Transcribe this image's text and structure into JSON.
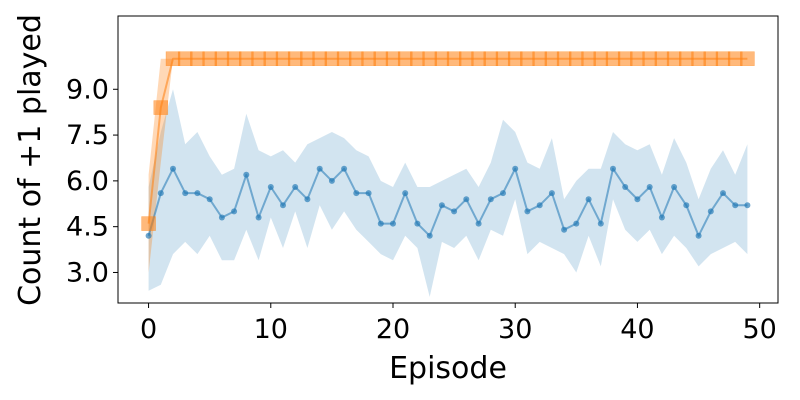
{
  "chart_data": {
    "type": "line",
    "title": "",
    "xlabel": "Episode",
    "ylabel": "Count of +1 played",
    "xlim": [
      -2.5,
      51.5
    ],
    "ylim": [
      2.0,
      11.4
    ],
    "xticks": [
      0,
      10,
      20,
      30,
      40,
      50
    ],
    "xtick_labels": [
      "0",
      "10",
      "20",
      "30",
      "40",
      "50"
    ],
    "yticks": [
      3.0,
      4.5,
      6.0,
      7.5,
      9.0
    ],
    "ytick_labels": [
      "3.0",
      "4.5",
      "6.0",
      "7.5",
      "9.0"
    ],
    "grid": false,
    "legend": "none",
    "x": [
      0,
      1,
      2,
      3,
      4,
      5,
      6,
      7,
      8,
      9,
      10,
      11,
      12,
      13,
      14,
      15,
      16,
      17,
      18,
      19,
      20,
      21,
      22,
      23,
      24,
      25,
      26,
      27,
      28,
      29,
      30,
      31,
      32,
      33,
      34,
      35,
      36,
      37,
      38,
      39,
      40,
      41,
      42,
      43,
      44,
      45,
      46,
      47,
      48,
      49
    ],
    "series": [
      {
        "color": "#1f77b4",
        "marker": "circle",
        "values": [
          4.2,
          5.6,
          6.4,
          5.6,
          5.6,
          5.4,
          4.8,
          5.0,
          6.2,
          4.8,
          5.8,
          5.2,
          5.8,
          5.4,
          6.4,
          6.0,
          6.4,
          5.6,
          5.6,
          4.6,
          4.6,
          5.6,
          4.6,
          4.2,
          5.2,
          5.0,
          5.4,
          4.6,
          5.4,
          5.6,
          6.4,
          5.0,
          5.2,
          5.6,
          4.4,
          4.6,
          5.4,
          4.6,
          6.4,
          5.8,
          5.4,
          5.8,
          4.8,
          5.8,
          5.2,
          4.2,
          5.0,
          5.6,
          5.2,
          5.2
        ],
        "lower": [
          2.4,
          2.6,
          3.6,
          4.0,
          3.6,
          4.2,
          3.4,
          3.4,
          4.4,
          3.4,
          4.8,
          3.8,
          5.0,
          3.8,
          5.2,
          4.4,
          5.0,
          4.4,
          4.0,
          3.6,
          3.4,
          4.2,
          3.8,
          2.2,
          4.0,
          3.8,
          4.2,
          3.4,
          4.4,
          4.2,
          5.4,
          3.6,
          4.0,
          3.8,
          3.6,
          3.0,
          4.2,
          3.2,
          5.4,
          4.4,
          4.0,
          4.4,
          3.6,
          4.2,
          3.8,
          3.2,
          3.6,
          3.8,
          4.0,
          3.6
        ],
        "upper": [
          5.8,
          7.6,
          9.0,
          7.2,
          7.6,
          6.8,
          6.2,
          6.4,
          8.2,
          7.0,
          6.8,
          7.0,
          6.6,
          7.2,
          7.4,
          7.6,
          7.4,
          7.0,
          6.8,
          6.0,
          5.8,
          6.6,
          5.8,
          5.8,
          6.0,
          6.2,
          6.4,
          5.8,
          6.6,
          8.0,
          7.6,
          6.6,
          6.4,
          7.4,
          5.4,
          6.0,
          6.4,
          6.4,
          7.6,
          7.2,
          7.0,
          7.2,
          6.2,
          7.4,
          6.6,
          5.4,
          6.4,
          7.0,
          6.2,
          7.2
        ]
      },
      {
        "color": "#ff7f0e",
        "marker": "square",
        "values": [
          4.6,
          8.4,
          10.0,
          10.0,
          10.0,
          10.0,
          10.0,
          10.0,
          10.0,
          10.0,
          10.0,
          10.0,
          10.0,
          10.0,
          10.0,
          10.0,
          10.0,
          10.0,
          10.0,
          10.0,
          10.0,
          10.0,
          10.0,
          10.0,
          10.0,
          10.0,
          10.0,
          10.0,
          10.0,
          10.0,
          10.0,
          10.0,
          10.0,
          10.0,
          10.0,
          10.0,
          10.0,
          10.0,
          10.0,
          10.0,
          10.0,
          10.0,
          10.0,
          10.0,
          10.0,
          10.0,
          10.0,
          10.0,
          10.0,
          10.0
        ],
        "lower": [
          3.0,
          6.6,
          10.0,
          10.0,
          10.0,
          10.0,
          10.0,
          10.0,
          10.0,
          10.0,
          10.0,
          10.0,
          10.0,
          10.0,
          10.0,
          10.0,
          10.0,
          10.0,
          10.0,
          10.0,
          10.0,
          10.0,
          10.0,
          10.0,
          10.0,
          10.0,
          10.0,
          10.0,
          10.0,
          10.0,
          10.0,
          10.0,
          10.0,
          10.0,
          10.0,
          10.0,
          10.0,
          10.0,
          10.0,
          10.0,
          10.0,
          10.0,
          10.0,
          10.0,
          10.0,
          10.0,
          10.0,
          10.0,
          10.0,
          10.0
        ],
        "upper": [
          6.2,
          10.0,
          10.0,
          10.0,
          10.0,
          10.0,
          10.0,
          10.0,
          10.0,
          10.0,
          10.0,
          10.0,
          10.0,
          10.0,
          10.0,
          10.0,
          10.0,
          10.0,
          10.0,
          10.0,
          10.0,
          10.0,
          10.0,
          10.0,
          10.0,
          10.0,
          10.0,
          10.0,
          10.0,
          10.0,
          10.0,
          10.0,
          10.0,
          10.0,
          10.0,
          10.0,
          10.0,
          10.0,
          10.0,
          10.0,
          10.0,
          10.0,
          10.0,
          10.0,
          10.0,
          10.0,
          10.0,
          10.0,
          10.0,
          10.0
        ]
      }
    ]
  }
}
